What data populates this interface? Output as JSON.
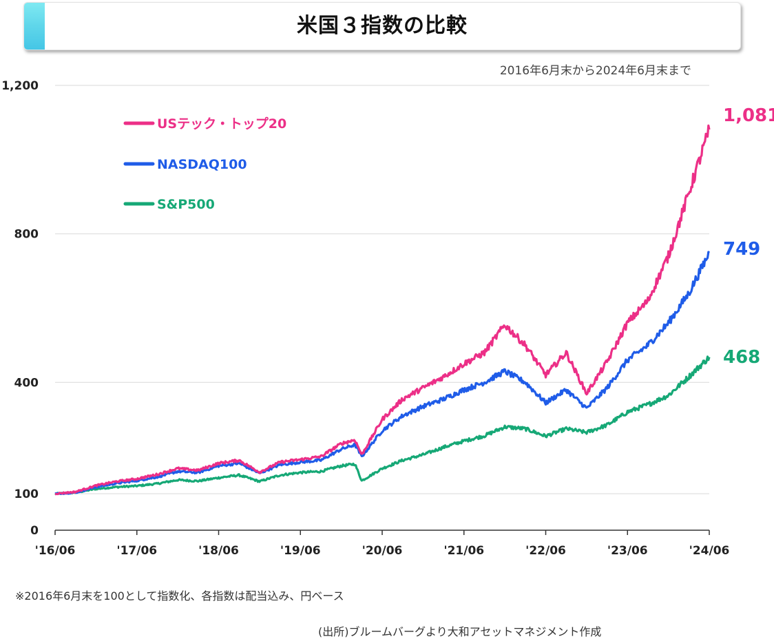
{
  "title": "米国３指数の比較",
  "subtitle": "2016年6月末から2024年6月末まで",
  "footnote": "※2016年6月末を100として指数化、各指数は配当込み、円ベース",
  "source": "(出所)ブルームバーグより大和アセットマネジメント作成",
  "chart_data": {
    "type": "line",
    "y_ticks": [
      {
        "value": 0,
        "label": "0"
      },
      {
        "value": 100,
        "label": "100"
      },
      {
        "value": 400,
        "label": "400"
      },
      {
        "value": 800,
        "label": "800"
      },
      {
        "value": 1200,
        "label": "1,200"
      }
    ],
    "ylim": [
      0,
      1200
    ],
    "x_ticks": [
      "'16/06",
      "'17/06",
      "'18/06",
      "'19/06",
      "'20/06",
      "'21/06",
      "'22/06",
      "'23/06",
      "'24/06"
    ],
    "grid": "horizontal",
    "legend_position": "top-left",
    "series": [
      {
        "name": "USテック・トップ20",
        "color": "#ec2f87",
        "end_label": "1,081",
        "points": [
          [
            "2016-06",
            100
          ],
          [
            "2016-09",
            105
          ],
          [
            "2016-12",
            122
          ],
          [
            "2017-03",
            133
          ],
          [
            "2017-06",
            140
          ],
          [
            "2017-09",
            152
          ],
          [
            "2017-12",
            168
          ],
          [
            "2018-03",
            163
          ],
          [
            "2018-06",
            182
          ],
          [
            "2018-09",
            190
          ],
          [
            "2018-12",
            158
          ],
          [
            "2019-03",
            185
          ],
          [
            "2019-06",
            192
          ],
          [
            "2019-09",
            200
          ],
          [
            "2019-12",
            235
          ],
          [
            "2020-02",
            245
          ],
          [
            "2020-03",
            205
          ],
          [
            "2020-06",
            300
          ],
          [
            "2020-09",
            355
          ],
          [
            "2020-12",
            385
          ],
          [
            "2021-03",
            415
          ],
          [
            "2021-06",
            450
          ],
          [
            "2021-09",
            480
          ],
          [
            "2021-12",
            555
          ],
          [
            "2022-03",
            500
          ],
          [
            "2022-06",
            420
          ],
          [
            "2022-09",
            480
          ],
          [
            "2022-12",
            370
          ],
          [
            "2023-03",
            455
          ],
          [
            "2023-06",
            560
          ],
          [
            "2023-09",
            620
          ],
          [
            "2023-12",
            740
          ],
          [
            "2024-03",
            910
          ],
          [
            "2024-06",
            1081
          ]
        ]
      },
      {
        "name": "NASDAQ100",
        "color": "#1f5ce8",
        "end_label": "749",
        "points": [
          [
            "2016-06",
            100
          ],
          [
            "2016-09",
            103
          ],
          [
            "2016-12",
            118
          ],
          [
            "2017-03",
            128
          ],
          [
            "2017-06",
            135
          ],
          [
            "2017-09",
            145
          ],
          [
            "2017-12",
            160
          ],
          [
            "2018-03",
            157
          ],
          [
            "2018-06",
            175
          ],
          [
            "2018-09",
            182
          ],
          [
            "2018-12",
            155
          ],
          [
            "2019-03",
            178
          ],
          [
            "2019-06",
            185
          ],
          [
            "2019-09",
            190
          ],
          [
            "2019-12",
            220
          ],
          [
            "2020-02",
            232
          ],
          [
            "2020-03",
            200
          ],
          [
            "2020-06",
            270
          ],
          [
            "2020-09",
            310
          ],
          [
            "2020-12",
            335
          ],
          [
            "2021-03",
            355
          ],
          [
            "2021-06",
            380
          ],
          [
            "2021-09",
            400
          ],
          [
            "2021-12",
            430
          ],
          [
            "2022-03",
            400
          ],
          [
            "2022-06",
            345
          ],
          [
            "2022-09",
            380
          ],
          [
            "2022-12",
            330
          ],
          [
            "2023-03",
            385
          ],
          [
            "2023-06",
            460
          ],
          [
            "2023-09",
            500
          ],
          [
            "2023-12",
            560
          ],
          [
            "2024-03",
            640
          ],
          [
            "2024-06",
            749
          ]
        ]
      },
      {
        "name": "S&P500",
        "color": "#16a876",
        "end_label": "468",
        "points": [
          [
            "2016-06",
            100
          ],
          [
            "2016-09",
            103
          ],
          [
            "2016-12",
            113
          ],
          [
            "2017-03",
            118
          ],
          [
            "2017-06",
            121
          ],
          [
            "2017-09",
            127
          ],
          [
            "2017-12",
            137
          ],
          [
            "2018-03",
            134
          ],
          [
            "2018-06",
            143
          ],
          [
            "2018-09",
            150
          ],
          [
            "2018-12",
            133
          ],
          [
            "2019-03",
            150
          ],
          [
            "2019-06",
            157
          ],
          [
            "2019-09",
            160
          ],
          [
            "2019-12",
            175
          ],
          [
            "2020-02",
            180
          ],
          [
            "2020-03",
            135
          ],
          [
            "2020-06",
            168
          ],
          [
            "2020-09",
            190
          ],
          [
            "2020-12",
            205
          ],
          [
            "2021-03",
            225
          ],
          [
            "2021-06",
            242
          ],
          [
            "2021-09",
            256
          ],
          [
            "2021-12",
            280
          ],
          [
            "2022-03",
            275
          ],
          [
            "2022-06",
            255
          ],
          [
            "2022-09",
            275
          ],
          [
            "2022-12",
            265
          ],
          [
            "2023-03",
            285
          ],
          [
            "2023-06",
            320
          ],
          [
            "2023-09",
            340
          ],
          [
            "2023-12",
            365
          ],
          [
            "2024-03",
            415
          ],
          [
            "2024-06",
            468
          ]
        ]
      }
    ]
  }
}
